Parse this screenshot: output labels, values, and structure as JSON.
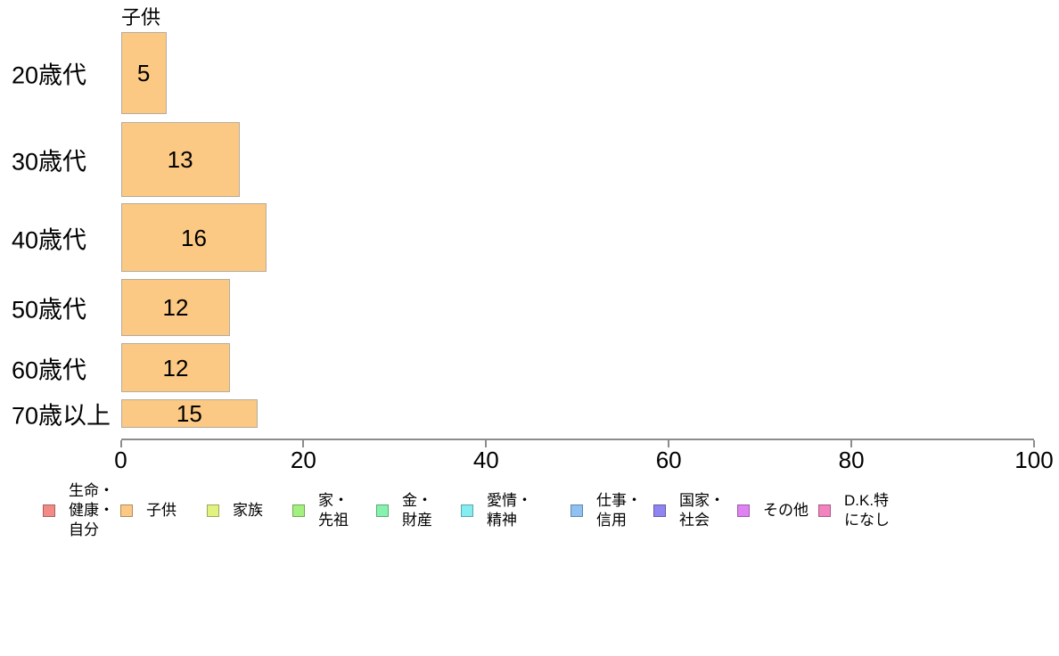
{
  "chart_data": {
    "type": "bar",
    "orientation": "horizontal",
    "title": "子供",
    "categories": [
      "20歳代",
      "30歳代",
      "40歳代",
      "50歳代",
      "60歳代",
      "70歳以上"
    ],
    "values": [
      5,
      13,
      16,
      12,
      12,
      15
    ],
    "xlabel": "",
    "ylabel": "",
    "xlim": [
      0,
      100
    ],
    "x_ticks": [
      0,
      20,
      40,
      60,
      80,
      100
    ],
    "grid": false,
    "bar_color": "#fbc983",
    "bar_border_color": "#b5aca0",
    "axis_color": "#8c8c8c",
    "legend_position": "bottom",
    "legend": [
      {
        "label": "生命・\n健康・\n自分",
        "color": "#f28b85"
      },
      {
        "label": "子供",
        "color": "#fbc983"
      },
      {
        "label": "家族",
        "color": "#e1f280"
      },
      {
        "label": "家・\n先祖",
        "color": "#a3f07e"
      },
      {
        "label": "金・\n財産",
        "color": "#85f2ad"
      },
      {
        "label": "愛情・\n精神",
        "color": "#84edf2"
      },
      {
        "label": "仕事・\n信用",
        "color": "#8fc2f2"
      },
      {
        "label": "国家・\n社会",
        "color": "#9084f0"
      },
      {
        "label": "その他",
        "color": "#e083f2"
      },
      {
        "label": "D.K.特\nになし",
        "color": "#f283bf"
      }
    ]
  }
}
